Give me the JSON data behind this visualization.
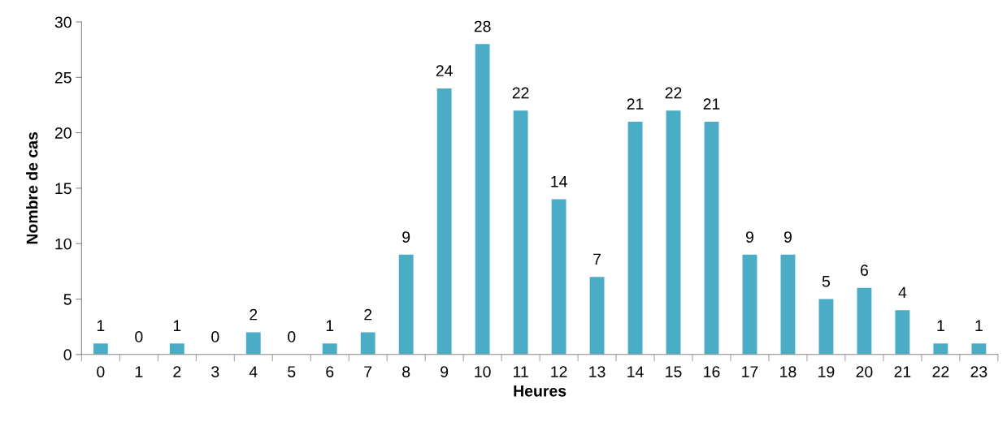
{
  "chart_data": {
    "type": "bar",
    "xlabel": "Heures",
    "ylabel": "Nombre de cas",
    "categories": [
      "0",
      "1",
      "2",
      "3",
      "4",
      "5",
      "6",
      "7",
      "8",
      "9",
      "10",
      "11",
      "12",
      "13",
      "14",
      "15",
      "16",
      "17",
      "18",
      "19",
      "20",
      "21",
      "22",
      "23"
    ],
    "values": [
      1,
      0,
      1,
      0,
      2,
      0,
      1,
      2,
      9,
      24,
      28,
      22,
      14,
      7,
      21,
      22,
      21,
      9,
      9,
      5,
      6,
      4,
      1,
      1
    ],
    "color": "#4bacc6",
    "ylim": [
      0,
      30
    ],
    "yticks": [
      0,
      5,
      10,
      15,
      20,
      25,
      30
    ],
    "grid": false,
    "data_labels": true
  }
}
